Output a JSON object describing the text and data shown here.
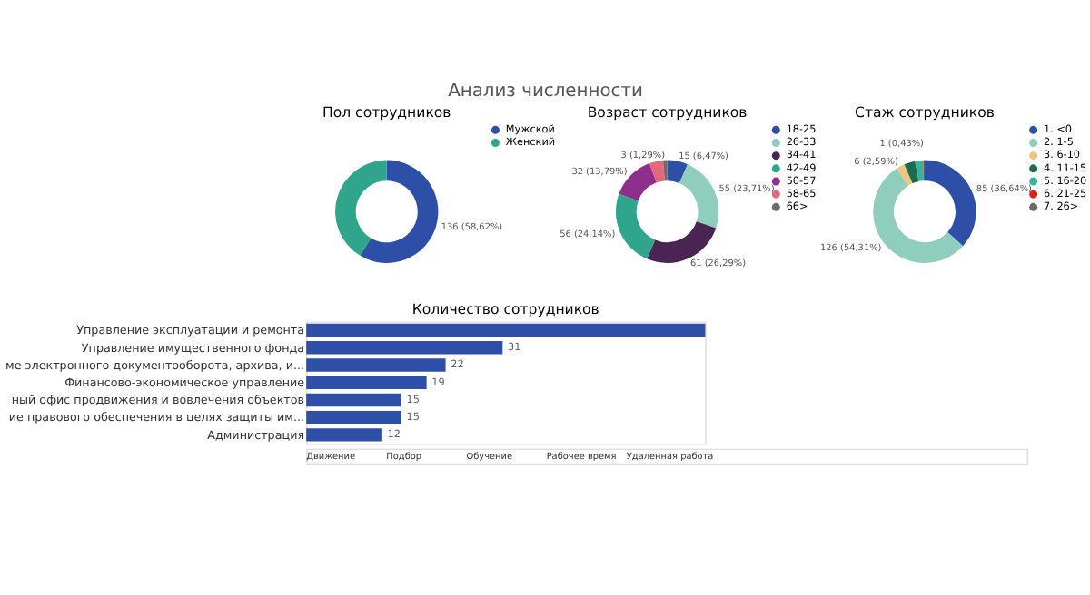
{
  "chart_data": [
    {
      "type": "other",
      "title": "Анализ численности",
      "annotations": [
        "Движение",
        "Подбор",
        "Обучение",
        "Рабочее время",
        "Удаленная работа"
      ]
    },
    {
      "type": "donut",
      "title": "Пол сотрудников",
      "legend": "right",
      "categories": [
        "Мужской",
        "Женский"
      ],
      "values": [
        136,
        96
      ],
      "colors": [
        "#2e4fa8",
        "#2fa58c"
      ],
      "value_labels": [
        "136 (58,62%)",
        null
      ]
    },
    {
      "type": "donut",
      "title": "Возраст сотрудников",
      "legend": "right",
      "categories": [
        "18-25",
        "26-33",
        "34-41",
        "42-49",
        "50-57",
        "58-65",
        "66>"
      ],
      "values": [
        15,
        55,
        61,
        56,
        32,
        10,
        3
      ],
      "colors": [
        "#2e4fa8",
        "#8fcdbd",
        "#4a2453",
        "#2fa58c",
        "#8e2f8c",
        "#e5687a",
        "#6b6b6b"
      ],
      "value_labels": [
        "15 (6,47%)",
        "55 (23,71%)",
        "61 (26,29%)",
        "56 (24,14%)",
        "32 (13,79%)",
        null,
        "3 (1,29%)"
      ]
    },
    {
      "type": "donut",
      "title": "Стаж сотрудников",
      "legend": "right",
      "categories": [
        "1. <0",
        "2. 1-5",
        "3. 6-10",
        "4. 11-15",
        "5. 16-20",
        "6. 21-25",
        "7. 26>"
      ],
      "values": [
        85,
        126,
        6,
        8,
        6,
        1,
        0
      ],
      "colors": [
        "#2e4fa8",
        "#8fcdbd",
        "#f2c57c",
        "#1e6b52",
        "#3bb39b",
        "#e0201e",
        "#6b6b6b"
      ],
      "value_labels": [
        "85 (36,64%)",
        "126 (54,31%)",
        "6 (2,59%)",
        null,
        null,
        "1 (0,43%)",
        null
      ]
    },
    {
      "type": "bar",
      "orientation": "horizontal",
      "title": "Количество сотрудников",
      "tick_labels": "y",
      "xlim": [
        0,
        63
      ],
      "color": "#2e4fa8",
      "categories": [
        "Управление эксплуатации и ремонта",
        "Управление имущественного фонда",
        "ме электронного документооборота, архива, и...",
        "Финансово-экономическое управление",
        "ный офис продвижения и вовлечения объектов",
        "ие правового обеспечения в целях защиты им...",
        "Администрация"
      ],
      "values": [
        63,
        31,
        22,
        19,
        15,
        15,
        12
      ],
      "value_labels": [
        null,
        "31",
        "22",
        "19",
        "15",
        "15",
        "12"
      ]
    }
  ]
}
